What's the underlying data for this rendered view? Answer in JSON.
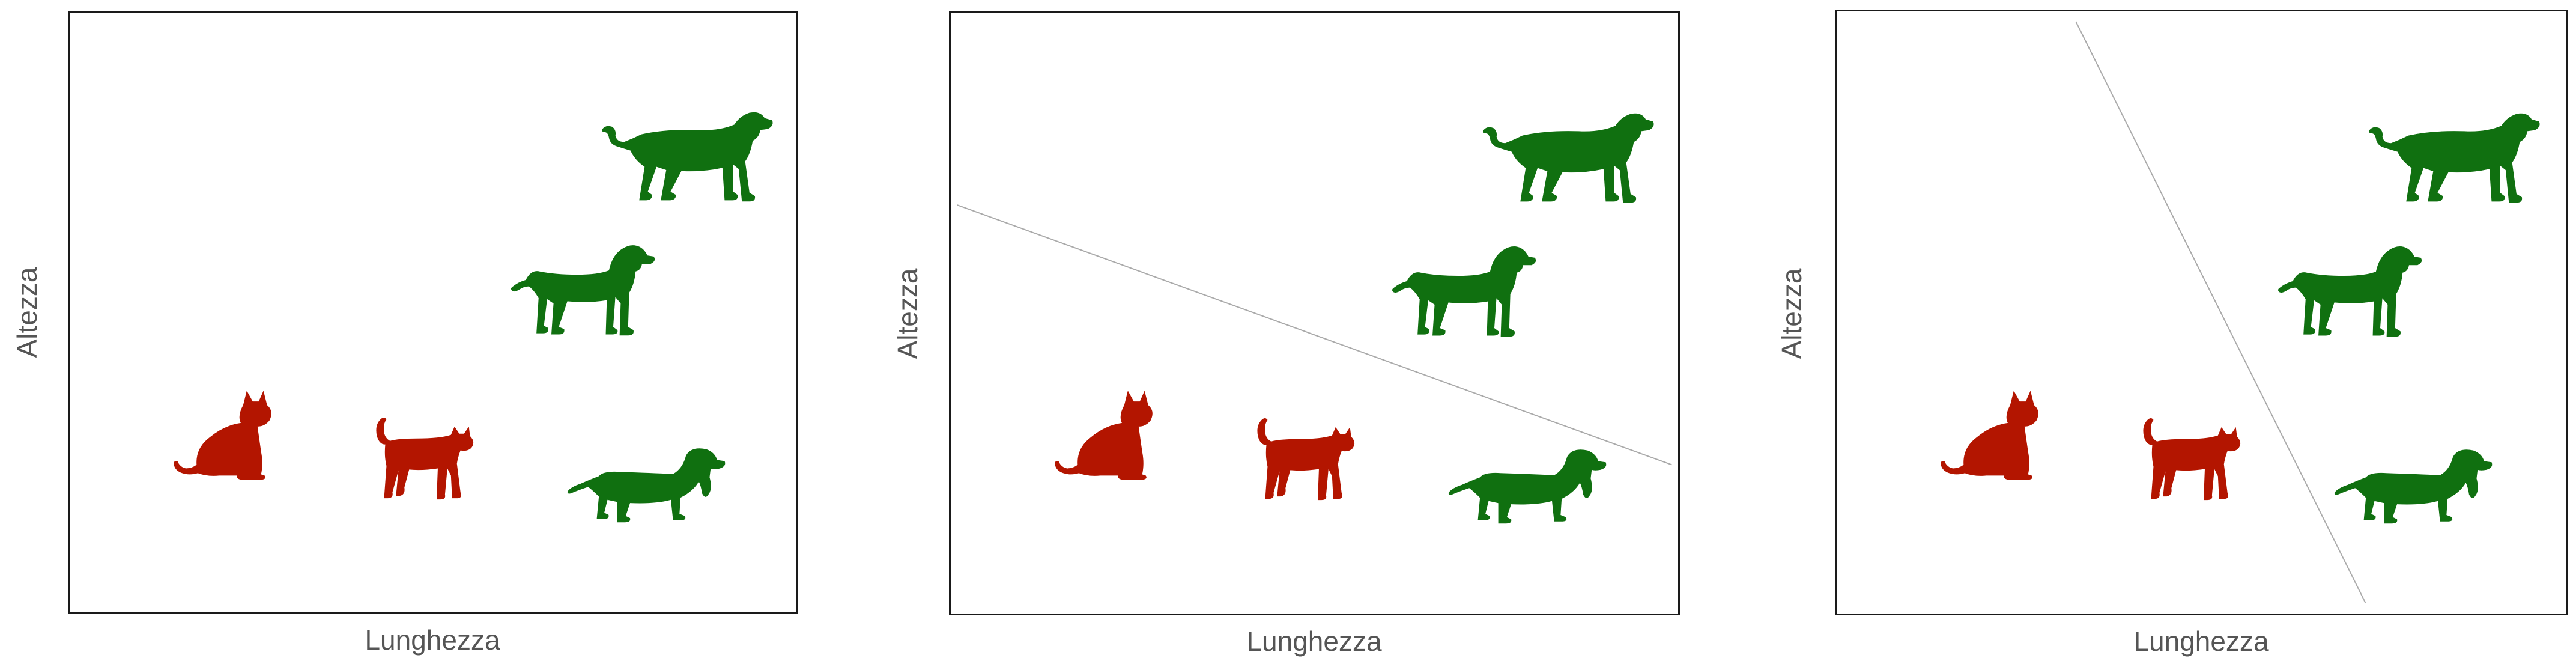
{
  "panels": [
    {
      "xlabel": "Lunghezza",
      "ylabel": "Altezza",
      "separator": false
    },
    {
      "xlabel": "Lunghezza",
      "ylabel": "Altezza",
      "separator": true
    },
    {
      "xlabel": "Lunghezza",
      "ylabel": "Altezza",
      "separator": true
    }
  ],
  "animals": [
    {
      "kind": "cat-sitting",
      "class": "gatto",
      "icon": "sitting-cat-icon"
    },
    {
      "kind": "cat-walking",
      "class": "gatto",
      "icon": "walking-cat-icon"
    },
    {
      "kind": "dachshund",
      "class": "cane",
      "icon": "dachshund-icon"
    },
    {
      "kind": "dog-medium",
      "class": "cane",
      "icon": "dog-icon"
    },
    {
      "kind": "dog-large",
      "class": "cane",
      "icon": "large-dog-icon"
    }
  ],
  "colors": {
    "cat": "#b31500",
    "dog": "#107010",
    "frame": "#1a1a1a",
    "separator": "#aaaaaa",
    "label": "#555555"
  }
}
